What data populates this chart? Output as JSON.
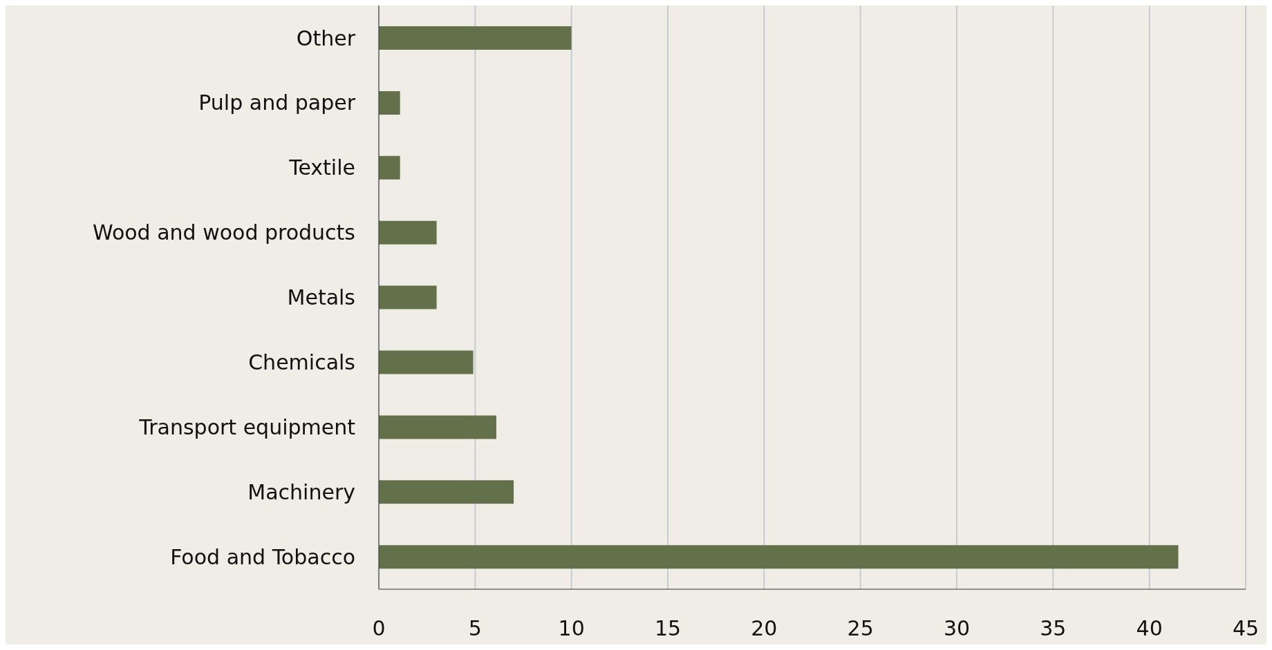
{
  "chart_data": {
    "type": "bar",
    "orientation": "horizontal",
    "categories": [
      "Other",
      "Pulp and paper",
      "Textile",
      "Wood and wood products",
      "Metals",
      "Chemicals",
      "Transport equipment",
      "Machinery",
      "Food and Tobacco"
    ],
    "values": [
      10.0,
      1.1,
      1.1,
      3.0,
      3.0,
      4.9,
      6.1,
      7.0,
      41.5
    ],
    "color": "#627149",
    "xlim": [
      0,
      45
    ],
    "xticks": [
      0,
      5,
      10,
      15,
      20,
      25,
      30,
      35,
      40,
      45
    ],
    "grid": "x"
  }
}
